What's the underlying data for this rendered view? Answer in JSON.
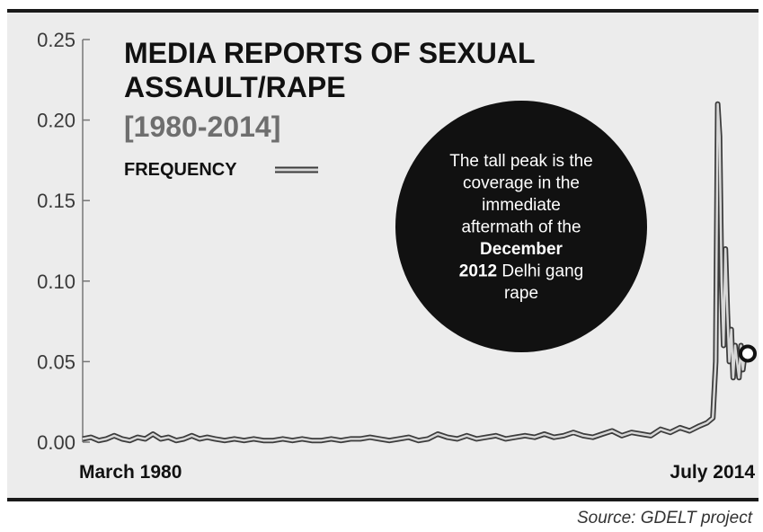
{
  "chart_data": {
    "type": "line",
    "title_lines": [
      "MEDIA REPORTS OF SEXUAL",
      "ASSAULT/RAPE"
    ],
    "subtitle": "[1980-2014]",
    "legend": [
      {
        "label": "FREQUENCY"
      }
    ],
    "ylim": [
      0,
      0.25
    ],
    "y_ticks": [
      "0.00",
      "0.05",
      "0.10",
      "0.15",
      "0.20",
      "0.25"
    ],
    "x_start_label": "March 1980",
    "x_end_label": "July 2014",
    "x_range": [
      1980.17,
      2014.5
    ],
    "series": [
      {
        "x": [
          1980.17,
          1980.6,
          1981.0,
          1981.4,
          1981.8,
          1982.2,
          1982.6,
          1983.0,
          1983.4,
          1983.8,
          1984.2,
          1984.6,
          1985.0,
          1985.4,
          1985.8,
          1986.2,
          1986.6,
          1987.0,
          1987.5,
          1988.0,
          1988.5,
          1989.0,
          1989.5,
          1990.0,
          1990.5,
          1991.0,
          1991.5,
          1992.0,
          1992.5,
          1993.0,
          1993.5,
          1994.0,
          1994.5,
          1995.0,
          1995.5,
          1996.0,
          1996.5,
          1997.0,
          1997.5,
          1998.0,
          1998.5,
          1999.0,
          1999.5,
          2000.0,
          2000.5,
          2001.0,
          2001.5,
          2002.0,
          2002.5,
          2003.0,
          2003.5,
          2004.0,
          2004.5,
          2005.0,
          2005.5,
          2006.0,
          2006.5,
          2007.0,
          2007.5,
          2008.0,
          2008.5,
          2009.0,
          2009.5,
          2010.0,
          2010.5,
          2011.0,
          2011.5,
          2012.0,
          2012.4,
          2012.7,
          2012.85,
          2012.95,
          2013.05,
          2013.15,
          2013.25,
          2013.35,
          2013.45,
          2013.55,
          2013.65,
          2013.75,
          2013.85,
          2013.95,
          2014.05,
          2014.15,
          2014.25,
          2014.35,
          2014.5
        ],
        "y": [
          0.002,
          0.003,
          0.001,
          0.002,
          0.004,
          0.002,
          0.001,
          0.003,
          0.002,
          0.005,
          0.002,
          0.003,
          0.001,
          0.002,
          0.004,
          0.002,
          0.003,
          0.002,
          0.001,
          0.002,
          0.001,
          0.002,
          0.001,
          0.001,
          0.002,
          0.001,
          0.002,
          0.001,
          0.001,
          0.002,
          0.001,
          0.002,
          0.002,
          0.003,
          0.002,
          0.001,
          0.002,
          0.003,
          0.001,
          0.002,
          0.005,
          0.003,
          0.002,
          0.004,
          0.002,
          0.003,
          0.004,
          0.002,
          0.003,
          0.004,
          0.003,
          0.005,
          0.003,
          0.004,
          0.006,
          0.004,
          0.003,
          0.005,
          0.007,
          0.004,
          0.006,
          0.005,
          0.004,
          0.008,
          0.006,
          0.009,
          0.007,
          0.01,
          0.012,
          0.015,
          0.05,
          0.21,
          0.19,
          0.1,
          0.06,
          0.12,
          0.08,
          0.05,
          0.07,
          0.04,
          0.06,
          0.05,
          0.04,
          0.06,
          0.045,
          0.055,
          0.055
        ]
      }
    ],
    "annotation": {
      "lines": [
        {
          "text": "The tall peak is the",
          "bold": false
        },
        {
          "text": "coverage  in the",
          "bold": false
        },
        {
          "text": "immediate",
          "bold": false
        },
        {
          "text": "aftermath of the",
          "bold": false
        },
        {
          "text": "December",
          "bold": true
        },
        {
          "text": "2012 Delhi gang",
          "bold": false,
          "bold_prefix": "2012"
        },
        {
          "text": "rape",
          "bold": false
        }
      ]
    },
    "grid": false,
    "legend_position": "top-left"
  },
  "source": "Source: GDELT project",
  "colors": {
    "background": "#ececec",
    "line_outer": "#3c3c3c",
    "line_inner": "#d8d8d8",
    "bubble": "#111111"
  }
}
